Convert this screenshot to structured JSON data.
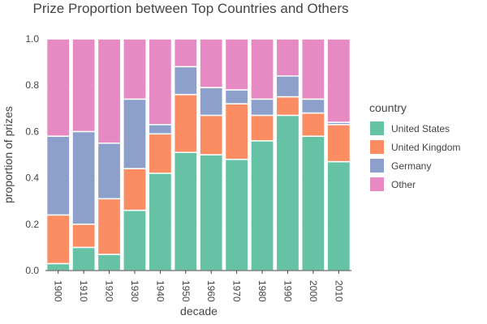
{
  "chart_data": {
    "type": "bar",
    "stacked": true,
    "title": "Prize Proportion between Top Countries and Others",
    "xlabel": "decade",
    "ylabel": "proportion of prizes",
    "ylim": [
      0,
      1
    ],
    "yticks": [
      "0.0",
      "0.2",
      "0.4",
      "0.6",
      "0.8",
      "1.0"
    ],
    "grid": true,
    "legend_title": "country",
    "legend_position": "right",
    "categories": [
      "1900",
      "1910",
      "1920",
      "1930",
      "1940",
      "1950",
      "1960",
      "1970",
      "1980",
      "1990",
      "2000",
      "2010"
    ],
    "series": [
      {
        "name": "United States",
        "color": "#66c2a5",
        "values": [
          0.03,
          0.1,
          0.07,
          0.26,
          0.42,
          0.51,
          0.5,
          0.48,
          0.56,
          0.67,
          0.58,
          0.47
        ]
      },
      {
        "name": "United Kingdom",
        "color": "#fc8d62",
        "values": [
          0.21,
          0.1,
          0.24,
          0.18,
          0.17,
          0.25,
          0.17,
          0.24,
          0.11,
          0.08,
          0.1,
          0.16
        ]
      },
      {
        "name": "Germany",
        "color": "#8da0cb",
        "values": [
          0.34,
          0.4,
          0.24,
          0.3,
          0.04,
          0.12,
          0.12,
          0.06,
          0.07,
          0.09,
          0.06,
          0.01
        ]
      },
      {
        "name": "Other",
        "color": "#e78ac3",
        "values": [
          0.42,
          0.4,
          0.45,
          0.26,
          0.37,
          0.12,
          0.21,
          0.22,
          0.26,
          0.16,
          0.26,
          0.36
        ]
      }
    ]
  }
}
